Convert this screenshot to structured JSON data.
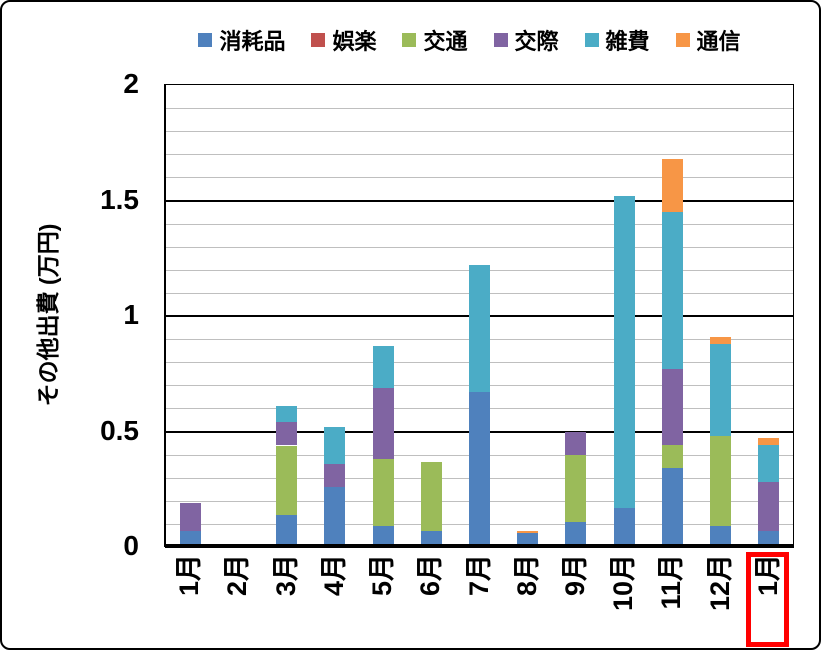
{
  "window": {
    "background": "#FFFFFF",
    "border_color": "#000000"
  },
  "legend": {
    "position": "top",
    "items": [
      {
        "label": "消耗品",
        "color": "#4F81BD"
      },
      {
        "label": "娯楽",
        "color": "#C0504D"
      },
      {
        "label": "交通",
        "color": "#9BBB59"
      },
      {
        "label": "交際",
        "color": "#8064A2"
      },
      {
        "label": "雑費",
        "color": "#4BACC6"
      },
      {
        "label": "通信",
        "color": "#F79646"
      }
    ]
  },
  "y_axis": {
    "title": "その他出費 (万円)",
    "tick_labels": [
      "0",
      "0.5",
      "1",
      "1.5",
      "2"
    ],
    "tick_values": [
      0,
      0.5,
      1,
      1.5,
      2
    ],
    "min": 0,
    "max": 2,
    "minor_gridline_color": "#BFBFBF",
    "major_gridline_color": "#000000"
  },
  "x_axis": {
    "labels": [
      "1月",
      "2月",
      "3月",
      "4月",
      "5月",
      "6月",
      "7月",
      "8月",
      "9月",
      "10月",
      "11月",
      "12月",
      "1月"
    ],
    "highlighted_index": 12,
    "highlight_color": "#FF0000"
  },
  "chart_data": {
    "type": "bar",
    "stacked": true,
    "title": "",
    "xlabel": "",
    "ylabel": "その他出費 (万円)",
    "ylim": [
      0,
      2
    ],
    "y_major_step": 0.5,
    "y_minor_step": 0.1,
    "grid": true,
    "legend_position": "top",
    "unit": "万円",
    "categories": [
      "1月",
      "2月",
      "3月",
      "4月",
      "5月",
      "6月",
      "7月",
      "8月",
      "9月",
      "10月",
      "11月",
      "12月",
      "1月"
    ],
    "series": [
      {
        "name": "消耗品",
        "color": "#4F81BD",
        "values": [
          0.07,
          0,
          0.14,
          0.26,
          0.09,
          0.07,
          0.67,
          0.06,
          0.11,
          0.17,
          0.34,
          0.09,
          0.07
        ]
      },
      {
        "name": "娯楽",
        "color": "#C0504D",
        "values": [
          0,
          0,
          0,
          0,
          0,
          0,
          0,
          0,
          0,
          0,
          0,
          0,
          0
        ]
      },
      {
        "name": "交通",
        "color": "#9BBB59",
        "values": [
          0,
          0,
          0.3,
          0,
          0.29,
          0.3,
          0,
          0,
          0.29,
          0,
          0.1,
          0.39,
          0
        ]
      },
      {
        "name": "交際",
        "color": "#8064A2",
        "values": [
          0.12,
          0,
          0.1,
          0.1,
          0.31,
          0,
          0,
          0,
          0.1,
          0,
          0.33,
          0,
          0.21
        ]
      },
      {
        "name": "雑費",
        "color": "#4BACC6",
        "values": [
          0,
          0,
          0.07,
          0.16,
          0.18,
          0,
          0.55,
          0,
          0,
          1.35,
          0.68,
          0.4,
          0.16
        ]
      },
      {
        "name": "通信",
        "color": "#F79646",
        "values": [
          0,
          0,
          0,
          0,
          0,
          0,
          0,
          0.01,
          0,
          0,
          0.23,
          0.03,
          0.03
        ]
      }
    ],
    "totals": [
      0.19,
      0,
      0.61,
      0.52,
      0.87,
      0.37,
      1.22,
      0.07,
      0.5,
      1.52,
      1.67,
      0.91,
      0.47
    ]
  }
}
